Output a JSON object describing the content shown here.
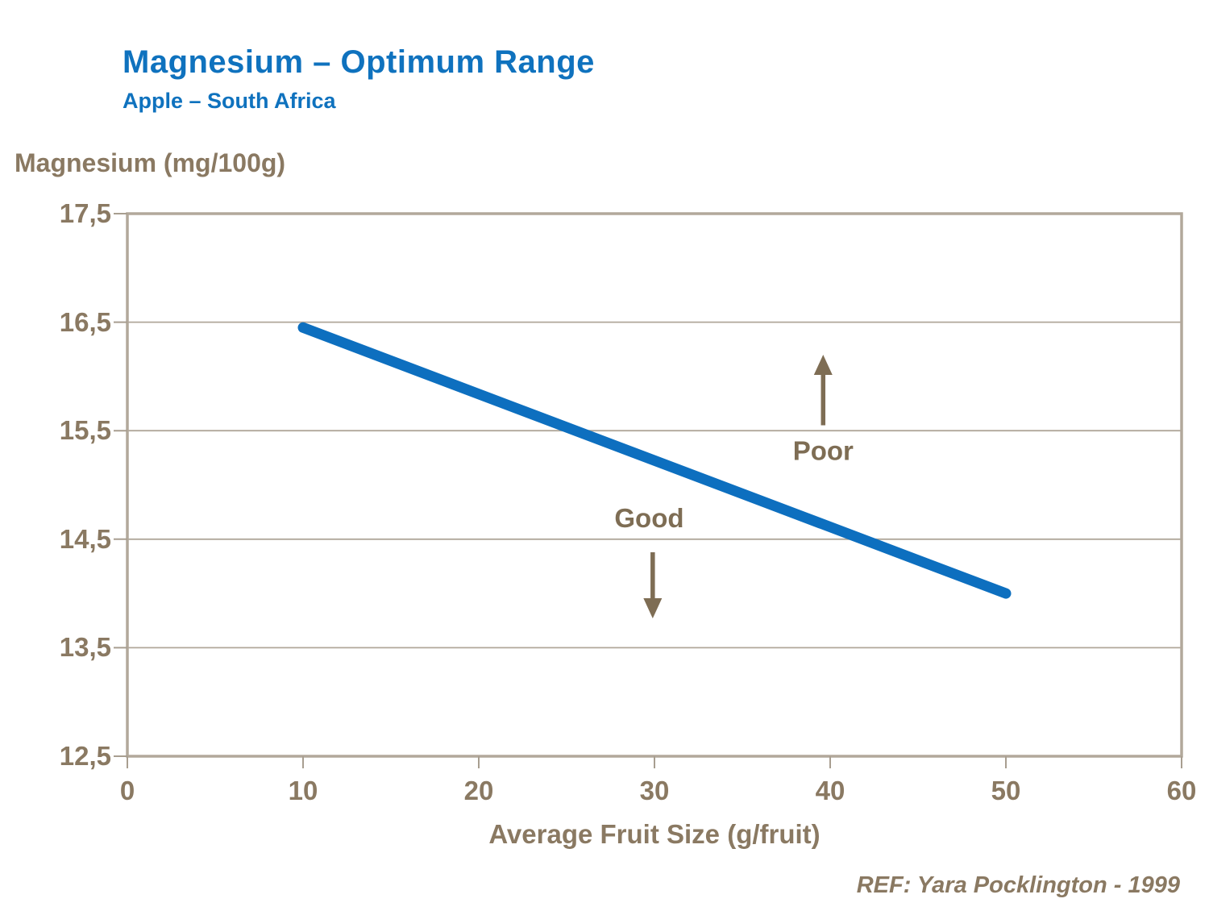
{
  "header": {
    "title": "Magnesium – Optimum Range",
    "subtitle": "Apple – South Africa"
  },
  "footer": {
    "reference": "REF: Yara Pocklington - 1999"
  },
  "colors": {
    "title_blue": "#0f72be",
    "line_blue": "#0d6fbf",
    "axis_text_brown": "#8a7962",
    "annotation_brown": "#7e6d54",
    "frame_tan": "#b2a89b",
    "gridline_tan": "#b0a79a",
    "tick_tan": "#a89e90"
  },
  "chart_data": {
    "type": "line",
    "title": "Magnesium – Optimum Range",
    "subtitle": "Apple – South Africa",
    "ylabel": "Magnesium (mg/100g)",
    "xlabel": "Average Fruit Size (g/fruit)",
    "xlim": [
      0,
      60
    ],
    "ylim": [
      12.5,
      17.5
    ],
    "grid": "horizontal-only",
    "legend": "none",
    "x_ticks": [
      {
        "v": 0,
        "label": "0"
      },
      {
        "v": 10,
        "label": "10"
      },
      {
        "v": 20,
        "label": "20"
      },
      {
        "v": 30,
        "label": "30"
      },
      {
        "v": 40,
        "label": "40"
      },
      {
        "v": 50,
        "label": "50"
      },
      {
        "v": 60,
        "label": "60"
      }
    ],
    "y_ticks": [
      {
        "v": 12.5,
        "label": "12,5"
      },
      {
        "v": 13.5,
        "label": "13,5"
      },
      {
        "v": 14.5,
        "label": "14,5"
      },
      {
        "v": 15.5,
        "label": "15,5"
      },
      {
        "v": 16.5,
        "label": "16,5"
      },
      {
        "v": 17.5,
        "label": "17,5"
      }
    ],
    "series": [
      {
        "name": "optimum-magnesium-line",
        "color": "#0d6fbf",
        "stroke_width": 13,
        "points": [
          {
            "x": 10,
            "y": 16.45
          },
          {
            "x": 50,
            "y": 14.0
          }
        ]
      }
    ],
    "annotations": [
      {
        "label": "Poor",
        "direction": "up",
        "text_x": 39.6,
        "text_y": 15.32,
        "arrow_x": 39.6,
        "arrow_tail_y": 15.55,
        "arrow_head_y": 16.2
      },
      {
        "label": "Good",
        "direction": "down",
        "text_x": 29.7,
        "text_y": 14.7,
        "arrow_x": 29.9,
        "arrow_tail_y": 14.38,
        "arrow_head_y": 13.77
      }
    ]
  }
}
